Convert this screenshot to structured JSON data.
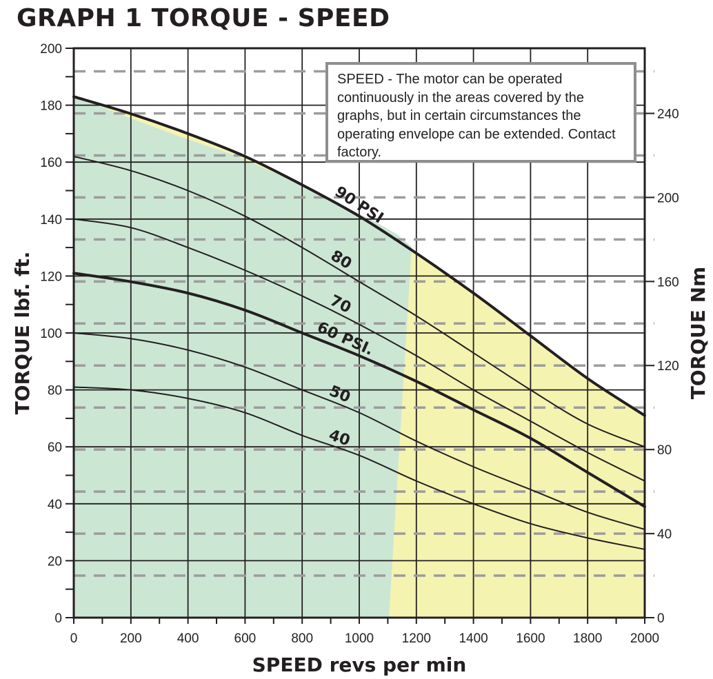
{
  "title": "GRAPH 1 TORQUE - SPEED",
  "note": "SPEED - The motor can be operated continuously in the areas covered by the graphs, but in certain circumstances the operating envelope can be extended. Contact factory.",
  "colors": {
    "continuous_region": "#cce6d4",
    "extended_region": "#f4f3b0",
    "grid": "#231f20",
    "nm_gridlines": "#9c9c9c",
    "curves": "#231f20"
  },
  "chart_data": {
    "type": "line",
    "title": "GRAPH 1 TORQUE - SPEED",
    "xlabel": "SPEED revs per min",
    "ylabel": "TORQUE lbf. ft.",
    "ylabel_right": "TORQUE Nm",
    "xlim": [
      0,
      2000
    ],
    "ylim": [
      0,
      200
    ],
    "ylim_right": [
      0,
      271
    ],
    "x_ticks": [
      "0",
      "200",
      "400",
      "600",
      "800",
      "1000",
      "1200",
      "1400",
      "1600",
      "1800",
      "2000"
    ],
    "y_ticks": [
      "0",
      "20",
      "40",
      "60",
      "80",
      "100",
      "120",
      "140",
      "160",
      "180",
      "200"
    ],
    "y_right_ticks": [
      "0",
      "40",
      "80",
      "120",
      "160",
      "200",
      "240"
    ],
    "grid": true,
    "series": [
      {
        "name": "90 PSI",
        "label": "90 PSI",
        "bold": true,
        "x": [
          0,
          200,
          400,
          600,
          800,
          1000,
          1200,
          1400,
          1600,
          1800,
          2000
        ],
        "y": [
          183,
          177,
          170,
          162,
          152,
          141,
          128,
          114,
          99,
          84,
          71
        ]
      },
      {
        "name": "80",
        "label": "80",
        "x": [
          0,
          200,
          400,
          600,
          800,
          1000,
          1200,
          1400,
          1600,
          1800,
          2000
        ],
        "y": [
          162,
          157,
          150,
          141,
          130,
          118,
          106,
          93,
          80,
          68,
          60
        ]
      },
      {
        "name": "70",
        "label": "70",
        "x": [
          0,
          200,
          400,
          600,
          800,
          1000,
          1200,
          1400,
          1600,
          1800,
          2000
        ],
        "y": [
          140,
          137,
          130,
          122,
          113,
          103,
          92,
          80,
          69,
          58,
          48
        ]
      },
      {
        "name": "60 PSI.",
        "label": "60 PSI.",
        "bold": true,
        "x": [
          0,
          200,
          400,
          600,
          800,
          1000,
          1200,
          1400,
          1600,
          1800,
          2000
        ],
        "y": [
          121,
          118,
          114,
          108,
          100,
          92,
          83,
          73,
          63,
          51,
          39
        ]
      },
      {
        "name": "50",
        "label": "50",
        "x": [
          0,
          200,
          400,
          600,
          800,
          1000,
          1200,
          1400,
          1600,
          1800,
          2000
        ],
        "y": [
          100,
          98,
          94,
          88,
          80,
          72,
          62,
          53,
          45,
          37,
          31
        ]
      },
      {
        "name": "40",
        "label": "40",
        "x": [
          0,
          200,
          400,
          600,
          800,
          1000,
          1200,
          1400,
          1600,
          1800,
          2000
        ],
        "y": [
          81,
          80,
          77,
          72,
          64,
          57,
          48,
          40,
          33,
          28,
          24
        ]
      }
    ],
    "regions": [
      {
        "type": "continuous",
        "color": "#cce6d4"
      },
      {
        "type": "extended",
        "color": "#f4f3b0"
      }
    ]
  }
}
